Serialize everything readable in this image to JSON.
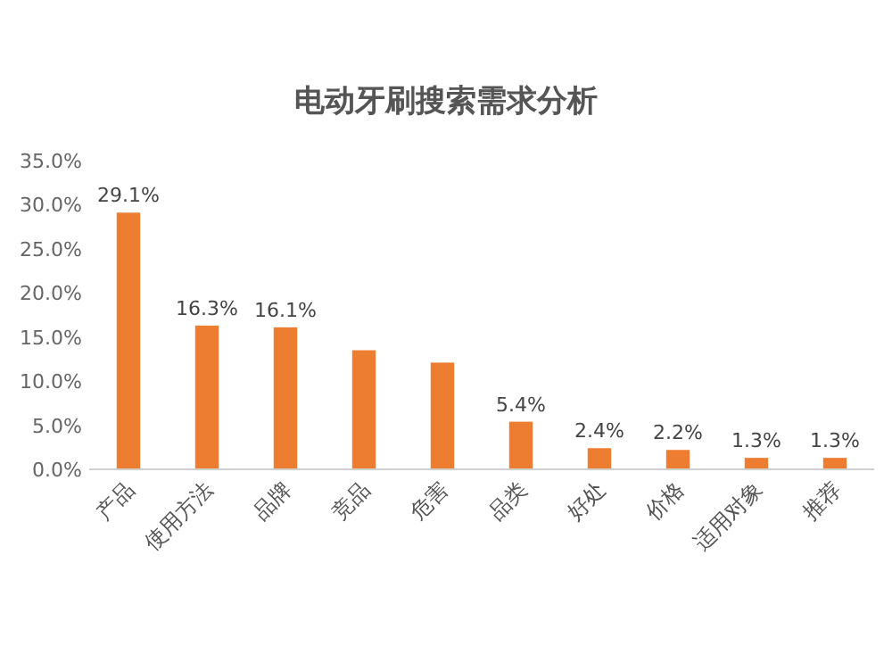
{
  "chart_data": {
    "type": "bar",
    "title": "电动牙刷搜索需求分析",
    "categories": [
      "产品",
      "使用方法",
      "品牌",
      "竞品",
      "危害",
      "品类",
      "好处",
      "价格",
      "适用对象",
      "推荐"
    ],
    "values": [
      29.1,
      16.3,
      16.1,
      13.5,
      12.1,
      5.4,
      2.4,
      2.2,
      1.3,
      1.3
    ],
    "value_labels": [
      "29.1%",
      "16.3%",
      "16.1%",
      null,
      null,
      "5.4%",
      "2.4%",
      "2.2%",
      "1.3%",
      "1.3%"
    ],
    "color": "#ed7d31",
    "ylim": [
      0,
      35
    ],
    "yticks": [
      {
        "value": 0,
        "label": "0.0%"
      },
      {
        "value": 5,
        "label": "5.0%"
      },
      {
        "value": 10,
        "label": "10.0%"
      },
      {
        "value": 15,
        "label": "15.0%"
      },
      {
        "value": 20,
        "label": "20.0%"
      },
      {
        "value": 25,
        "label": "25.0%"
      },
      {
        "value": 30,
        "label": "30.0%"
      },
      {
        "value": 35,
        "label": "35.0%"
      }
    ],
    "grid": false
  }
}
